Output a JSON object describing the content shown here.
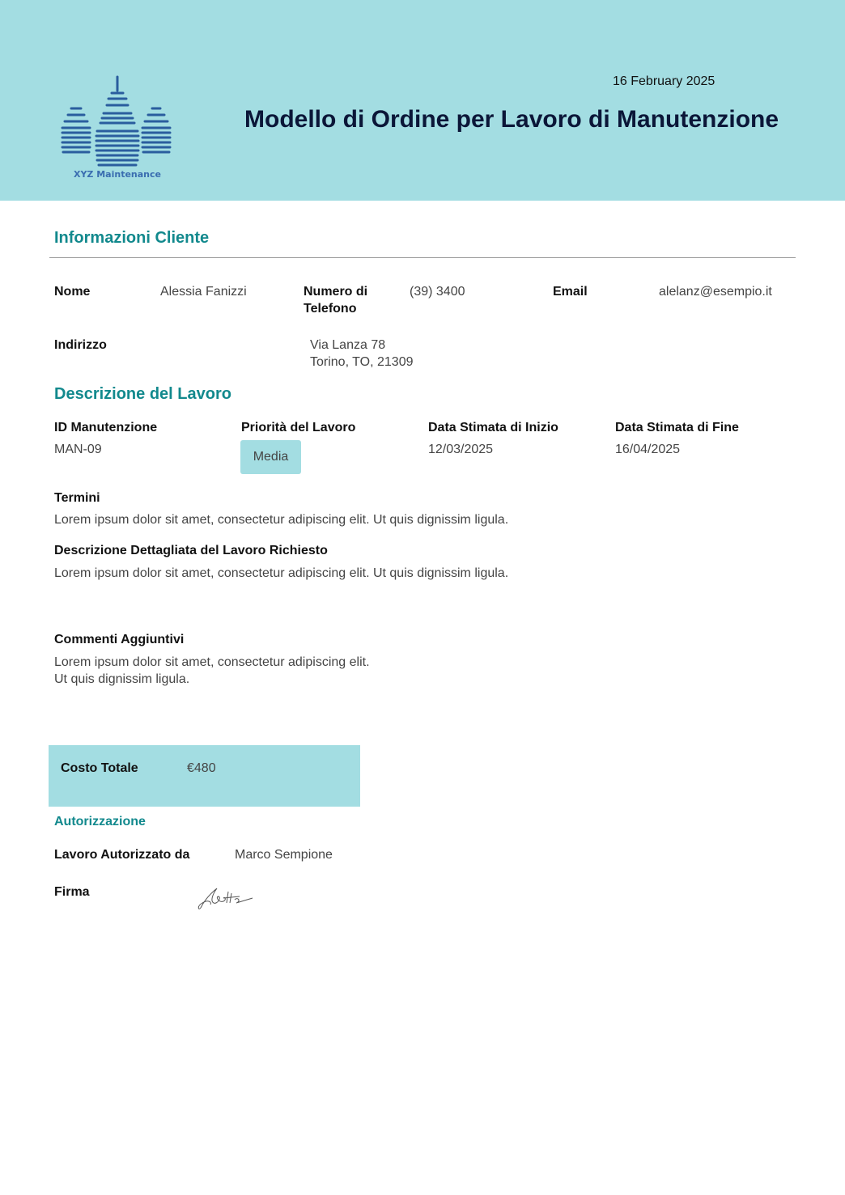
{
  "header": {
    "date": "16 February 2025",
    "title": "Modello di Ordine per Lavoro di Manutenzione",
    "logo_text": "XYZ Maintenance",
    "bg_color": "#a3dde2"
  },
  "client": {
    "heading": "Informazioni Cliente",
    "name_label": "Nome",
    "name": "Alessia Fanizzi",
    "phone_label_1": "Numero di",
    "phone_label_2": "Telefono",
    "phone": "(39) 3400",
    "email_label": "Email",
    "email": "alelanz@esempio.it",
    "address_label": "Indirizzo",
    "address_1": "Via Lanza 78",
    "address_2": "Torino, TO, 21309"
  },
  "job": {
    "heading": "Descrizione del Lavoro",
    "id_label": "ID Manutenzione",
    "id": "MAN-09",
    "priority_label": "Priorità del Lavoro",
    "priority": "Media",
    "start_label": "Data Stimata di Inizio",
    "start": "12/03/2025",
    "end_label": "Data Stimata di Fine",
    "end": "16/04/2025",
    "terms_label": "Termini",
    "terms": "Lorem ipsum dolor sit amet, consectetur adipiscing elit. Ut quis dignissim ligula.",
    "detail_label": "Descrizione Dettagliata del Lavoro Richiesto",
    "detail": "Lorem ipsum dolor sit amet, consectetur adipiscing elit. Ut quis dignissim ligula.",
    "comments_label": "Commenti Aggiuntivi",
    "comments_1": "Lorem ipsum dolor sit amet, consectetur adipiscing elit.",
    "comments_2": "Ut quis dignissim ligula."
  },
  "cost": {
    "label": "Costo Totale",
    "value": "€480"
  },
  "auth": {
    "heading": "Autorizzazione",
    "by_label": "Lavoro Autorizzato da",
    "by": "Marco Sempione",
    "signature_label": "Firma"
  },
  "colors": {
    "accent": "#12898d",
    "title": "#0b1638"
  }
}
